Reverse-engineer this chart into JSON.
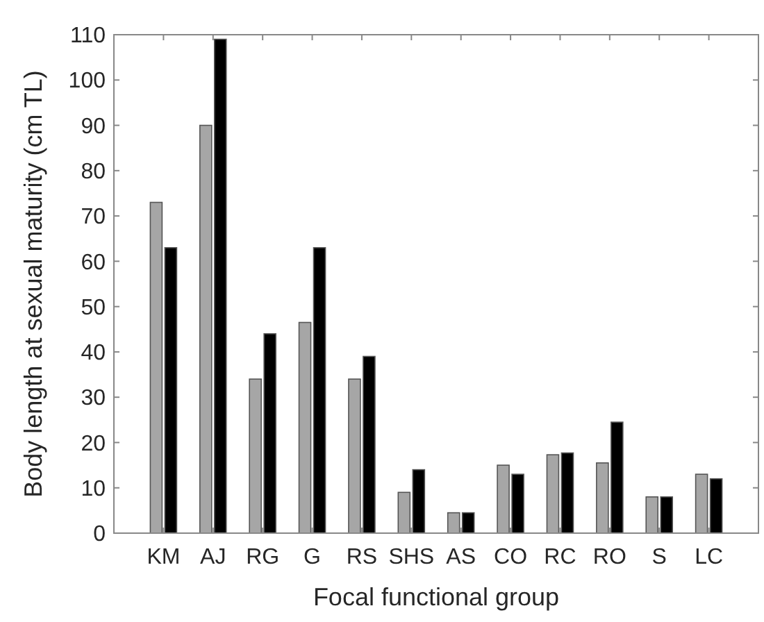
{
  "chart_data": {
    "type": "bar",
    "xlabel": "Focal functional group",
    "ylabel": "Body length at sexual maturity (cm TL)",
    "categories": [
      "KM",
      "AJ",
      "RG",
      "G",
      "RS",
      "SHS",
      "AS",
      "CO",
      "RC",
      "RO",
      "S",
      "LC"
    ],
    "series": [
      {
        "color": "#a6a6a6",
        "values": [
          73,
          90,
          34,
          46.5,
          34,
          9,
          4.5,
          15,
          17.3,
          15.5,
          8,
          13
        ]
      },
      {
        "color": "#000000",
        "values": [
          63,
          109,
          44,
          63,
          39,
          14,
          4.5,
          13,
          17.7,
          24.5,
          8,
          12
        ]
      }
    ],
    "ylim": [
      0,
      110
    ],
    "yticks": [
      0,
      10,
      20,
      30,
      40,
      50,
      60,
      70,
      80,
      90,
      100,
      110
    ],
    "grid": false
  }
}
